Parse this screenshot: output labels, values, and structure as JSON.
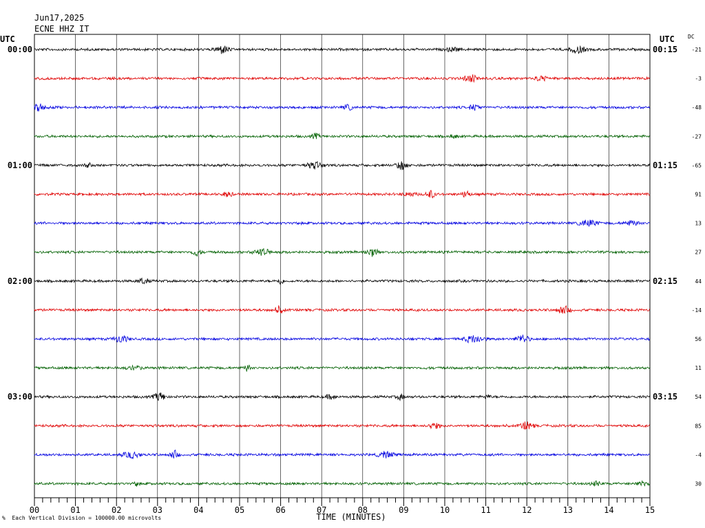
{
  "header": {
    "date": "Jun17,2025",
    "station": "ECNE HHZ IT",
    "utc_left": "UTC",
    "utc_right": "UTC",
    "dc_label": "DC"
  },
  "footer": {
    "note": "Each Vertical Division = 100000.00 microvolts",
    "mark": "%"
  },
  "chart_data": {
    "type": "line",
    "xlabel": "TIME (MINUTES)",
    "xlim": [
      0,
      15
    ],
    "x_ticks": [
      "00",
      "01",
      "02",
      "03",
      "04",
      "05",
      "06",
      "07",
      "08",
      "09",
      "10",
      "11",
      "12",
      "13",
      "14",
      "15"
    ],
    "grid": true,
    "trace_colors": [
      "#000000",
      "#e00000",
      "#0000e0",
      "#006000"
    ],
    "traces": [
      {
        "left_label": "00:00",
        "right_label": "00:15",
        "dc": "-21",
        "color": "#000000"
      },
      {
        "left_label": "",
        "right_label": "",
        "dc": "-3",
        "color": "#e00000"
      },
      {
        "left_label": "",
        "right_label": "",
        "dc": "-48",
        "color": "#0000e0"
      },
      {
        "left_label": "",
        "right_label": "",
        "dc": "-27",
        "color": "#006000"
      },
      {
        "left_label": "01:00",
        "right_label": "01:15",
        "dc": "-65",
        "color": "#000000"
      },
      {
        "left_label": "",
        "right_label": "",
        "dc": "91",
        "color": "#e00000"
      },
      {
        "left_label": "",
        "right_label": "",
        "dc": "13",
        "color": "#0000e0"
      },
      {
        "left_label": "",
        "right_label": "",
        "dc": "27",
        "color": "#006000"
      },
      {
        "left_label": "02:00",
        "right_label": "02:15",
        "dc": "44",
        "color": "#000000"
      },
      {
        "left_label": "",
        "right_label": "",
        "dc": "-14",
        "color": "#e00000"
      },
      {
        "left_label": "",
        "right_label": "",
        "dc": "56",
        "color": "#0000e0"
      },
      {
        "left_label": "",
        "right_label": "",
        "dc": "11",
        "color": "#006000"
      },
      {
        "left_label": "03:00",
        "right_label": "03:15",
        "dc": "54",
        "color": "#000000"
      },
      {
        "left_label": "",
        "right_label": "",
        "dc": "85",
        "color": "#e00000"
      },
      {
        "left_label": "",
        "right_label": "",
        "dc": "-4",
        "color": "#0000e0"
      },
      {
        "left_label": "",
        "right_label": "",
        "dc": "30",
        "color": "#006000"
      }
    ]
  }
}
